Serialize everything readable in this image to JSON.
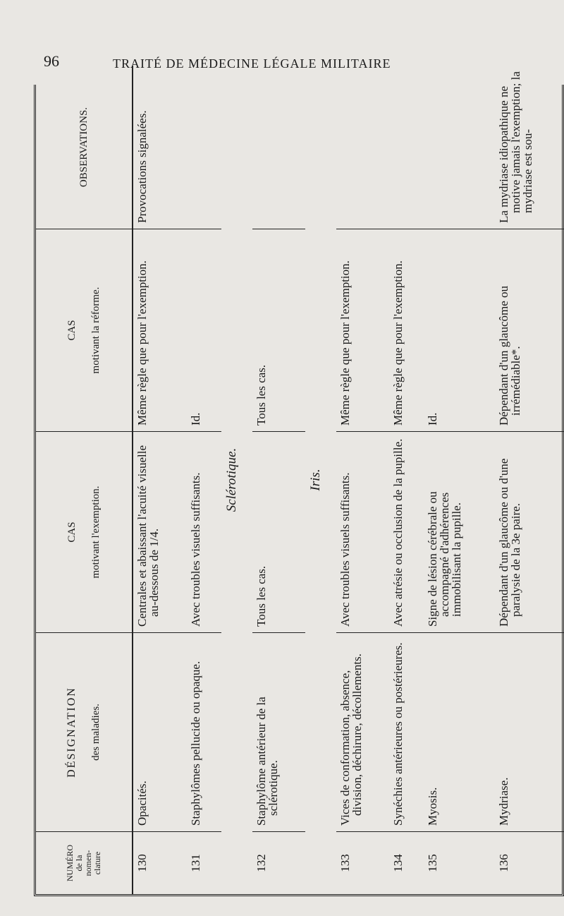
{
  "page_number": "96",
  "running_title": "TRAITÉ DE MÉDECINE LÉGALE MILITAIRE",
  "headers": {
    "numero": [
      "NUMÉRO",
      "de la",
      "nomen-",
      "clature"
    ],
    "designation": [
      "DÉSIGNATION",
      "des maladies."
    ],
    "exemption": [
      "CAS",
      "motivant l'exemption."
    ],
    "reforme": [
      "CAS",
      "motivant la réforme."
    ],
    "observations": "OBSERVATIONS."
  },
  "rows": [
    {
      "num": "130",
      "designation": "Opacités.",
      "exemption": "Centrales et abaissant l'acuité visuelle au-dessous de 1/4.",
      "reforme": "Même règle que pour l'exemption.",
      "observations": "Provocations signalées."
    },
    {
      "num": "131",
      "designation": "Staphylômes pellucide ou opaque.",
      "exemption": "Avec troubles visuels suffisants.",
      "reforme": "Id.",
      "observations": ""
    },
    {
      "section": "Sclérotique."
    },
    {
      "num": "132",
      "designation": "Staphylôme antérieur de la sclérotique.",
      "exemption": "Tous les cas.",
      "reforme": "Tous les cas.",
      "observations": ""
    },
    {
      "section": "Iris."
    },
    {
      "num": "133",
      "designation": "Vices de conformation, absence, division, déchirure, décollements.",
      "exemption": "Avec troubles visuels suffisants.",
      "reforme": "Même règle que pour l'exemption.",
      "observations": ""
    },
    {
      "num": "134",
      "designation": "Synéchies antérieures ou postérieures.",
      "exemption": "Avec atrésie ou occlusion de la pupille.",
      "reforme": "Même règle que pour l'exemption.",
      "observations": ""
    },
    {
      "num": "135",
      "designation": "Myosis.",
      "exemption": "Signe de lésion cérébrale ou accompagné d'adhérences immobilisant la pupille.",
      "reforme": "Id.",
      "observations": ""
    },
    {
      "num": "136",
      "designation": "Mydriase.",
      "exemption": "Dépendant d'un glaucôme ou d'une paralysie de la 3e paire.",
      "reforme": "Dépendant d'un glaucôme ou irrémédiable*.",
      "observations": "La mydriase idiopathique ne motive jamais l'exemption; la mydriase est sou-"
    }
  ]
}
